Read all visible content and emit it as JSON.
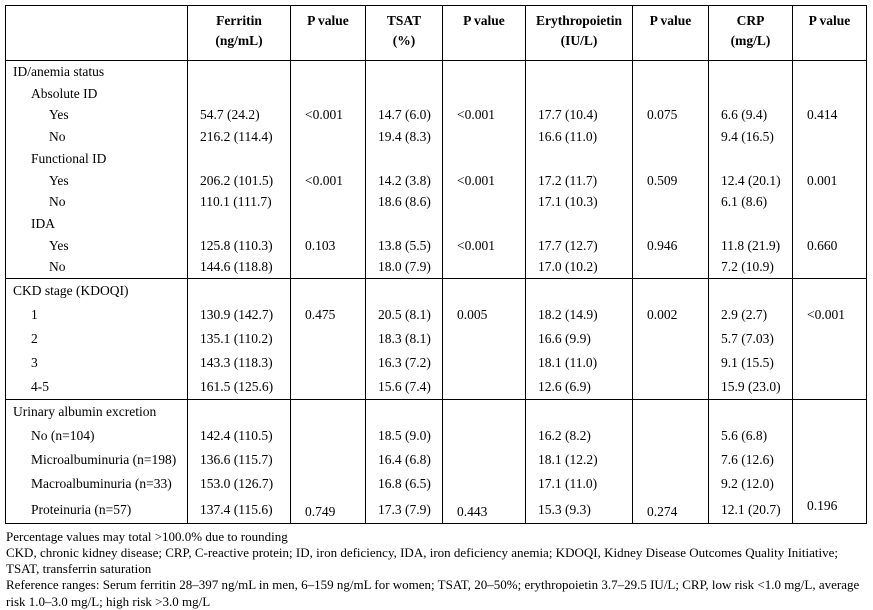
{
  "table": {
    "columns": [
      {
        "label": "",
        "sub": ""
      },
      {
        "label": "Ferritin",
        "sub": "(ng/mL)"
      },
      {
        "label": "P value",
        "sub": ""
      },
      {
        "label": "TSAT",
        "sub": "(%)"
      },
      {
        "label": "P value",
        "sub": ""
      },
      {
        "label": "Erythropoietin",
        "sub": "(IU/L)"
      },
      {
        "label": "P value",
        "sub": ""
      },
      {
        "label": "CRP",
        "sub": "(mg/L)"
      },
      {
        "label": "P value",
        "sub": ""
      }
    ],
    "sections": [
      {
        "rows": [
          {
            "label": "ID/anemia status",
            "indent": 0,
            "cells": [
              "",
              "",
              "",
              "",
              "",
              "",
              "",
              ""
            ]
          },
          {
            "label": "Absolute ID",
            "indent": 1,
            "cells": [
              "",
              "",
              "",
              "",
              "",
              "",
              "",
              ""
            ]
          },
          {
            "label": "Yes",
            "indent": 2,
            "cells": [
              "54.7 (24.2)",
              "<0.001",
              "14.7 (6.0)",
              "<0.001",
              "17.7 (10.4)",
              "0.075",
              "6.6 (9.4)",
              "0.414"
            ]
          },
          {
            "label": "No",
            "indent": 2,
            "cells": [
              "216.2 (114.4)",
              "",
              "19.4 (8.3)",
              "",
              "16.6 (11.0)",
              "",
              "9.4 (16.5)",
              ""
            ]
          },
          {
            "label": "Functional ID",
            "indent": 1,
            "cells": [
              "",
              "",
              "",
              "",
              "",
              "",
              "",
              ""
            ]
          },
          {
            "label": "Yes",
            "indent": 2,
            "cells": [
              "206.2 (101.5)",
              "<0.001",
              "14.2 (3.8)",
              "<0.001",
              "17.2 (11.7)",
              "0.509",
              "12.4 (20.1)",
              "0.001"
            ]
          },
          {
            "label": "No",
            "indent": 2,
            "cells": [
              "110.1 (111.7)",
              "",
              "18.6 (8.6)",
              "",
              "17.1 (10.3)",
              "",
              "6.1 (8.6)",
              ""
            ]
          },
          {
            "label": "IDA",
            "indent": 1,
            "cells": [
              "",
              "",
              "",
              "",
              "",
              "",
              "",
              ""
            ]
          },
          {
            "label": "Yes",
            "indent": 2,
            "cells": [
              "125.8 (110.3)",
              "0.103",
              "13.8 (5.5)",
              "<0.001",
              "17.7 (12.7)",
              "0.946",
              "11.8 (21.9)",
              "0.660"
            ]
          },
          {
            "label": "No",
            "indent": 2,
            "cells": [
              "144.6 (118.8)",
              "",
              "18.0 (7.9)",
              "",
              "17.0 (10.2)",
              "",
              "7.2 (10.9)",
              ""
            ]
          }
        ]
      },
      {
        "rows": [
          {
            "label": "CKD stage (KDOQI)",
            "indent": 0,
            "cells": [
              "",
              "",
              "",
              "",
              "",
              "",
              "",
              ""
            ]
          },
          {
            "label": "1",
            "indent": 1,
            "cells": [
              "130.9 (142.7)",
              "0.475",
              "20.5 (8.1)",
              "0.005",
              "18.2 (14.9)",
              "0.002",
              "2.9 (2.7)",
              "<0.001"
            ]
          },
          {
            "label": "2",
            "indent": 1,
            "cells": [
              "135.1 (110.2)",
              "",
              "18.3 (8.1)",
              "",
              "16.6 (9.9)",
              "",
              "5.7 (7.03)",
              ""
            ]
          },
          {
            "label": "3",
            "indent": 1,
            "cells": [
              "143.3 (118.3)",
              "",
              "16.3 (7.2)",
              "",
              "18.1 (11.0)",
              "",
              "9.1 (15.5)",
              ""
            ]
          },
          {
            "label": "4-5",
            "indent": 1,
            "cells": [
              "161.5 (125.6)",
              "",
              "15.6 (7.4)",
              "",
              "12.6 (6.9)",
              "",
              "15.9 (23.0)",
              ""
            ]
          }
        ]
      },
      {
        "rows": [
          {
            "label": "Urinary albumin excretion",
            "indent": 0,
            "cells": [
              "",
              "",
              "",
              "",
              "",
              "",
              "",
              ""
            ]
          },
          {
            "label": "No (n=104)",
            "indent": 1,
            "cells": [
              "142.4 (110.5)",
              "",
              "18.5 (9.0)",
              "",
              "16.2 (8.2)",
              "",
              "5.6 (6.8)",
              ""
            ]
          },
          {
            "label": "Microalbuminuria (n=198)",
            "indent": 1,
            "cells": [
              "136.6 (115.7)",
              "",
              "16.4 (6.8)",
              "",
              "18.1 (12.2)",
              "",
              "7.6 (12.6)",
              ""
            ]
          },
          {
            "label": "Macroalbuminuria (n=33)",
            "indent": 1,
            "cells": [
              "153.0 (126.7)",
              "",
              "16.8 (6.5)",
              "",
              "17.1 (11.0)",
              "",
              "9.2 (12.0)",
              ""
            ]
          },
          {
            "label": "Proteinuria (n=57)",
            "indent": 1,
            "cells": [
              "137.4 (115.6)",
              "0.749",
              "17.3 (7.9)",
              "0.443",
              "15.3 (9.3)",
              "0.274",
              "12.1 (20.7)",
              "0.196"
            ]
          }
        ]
      }
    ]
  },
  "footnotes": [
    "Percentage values may total >100.0% due to rounding",
    "CKD, chronic kidney disease; CRP, C-reactive protein; ID, iron deficiency, IDA, iron deficiency anemia; KDOQI, Kidney Disease Outcomes Quality Initiative; TSAT, transferrin saturation",
    "Reference ranges: Serum ferritin 28–397 ng/mL in men, 6–159 ng/mL for women; TSAT, 20–50%; erythropoietin 3.7–29.5 IU/L; CRP, low risk <1.0 mg/L, average risk 1.0–3.0 mg/L; high risk >3.0 mg/L"
  ]
}
